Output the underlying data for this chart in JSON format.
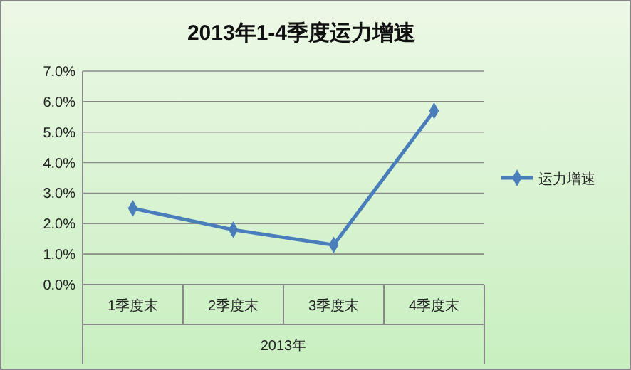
{
  "chart_data": {
    "type": "line",
    "title": "2013年1-4季度运力增速",
    "xlabel": "2013年",
    "categories": [
      "1季度末",
      "2季度末",
      "3季度末",
      "4季度末"
    ],
    "series": [
      {
        "name": "运力增速",
        "color": "#4a7ebb",
        "values": [
          2.5,
          1.8,
          1.3,
          5.7
        ]
      }
    ],
    "ylim": [
      0,
      7
    ],
    "yticks": [
      {
        "value": 0,
        "label": "0.0%"
      },
      {
        "value": 1,
        "label": "1.0%"
      },
      {
        "value": 2,
        "label": "2.0%"
      },
      {
        "value": 3,
        "label": "3.0%"
      },
      {
        "value": 4,
        "label": "4.0%"
      },
      {
        "value": 5,
        "label": "5.0%"
      },
      {
        "value": 6,
        "label": "6.0%"
      },
      {
        "value": 7,
        "label": "7.0%"
      }
    ],
    "grid": "y",
    "legend": "right",
    "marker": "diamond",
    "line_style": "solid"
  }
}
